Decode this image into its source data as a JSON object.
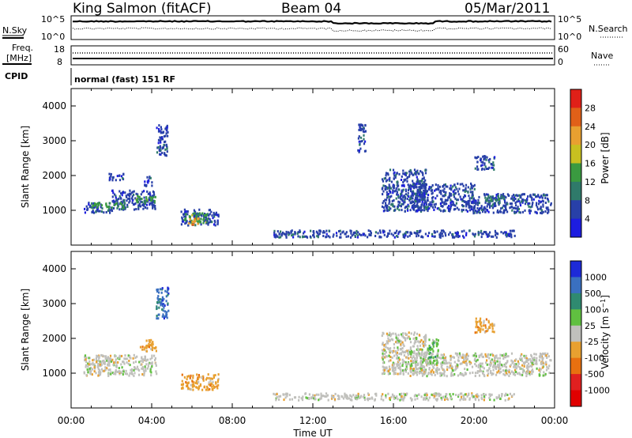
{
  "header": {
    "radar": "King Salmon (fitACF)",
    "beam": "Beam 04",
    "date": "05/Mar/2011"
  },
  "status_panels": {
    "nsky_label": "N.Sky",
    "nsearch_label": "N.Search",
    "freq_label_line1": "Freq.",
    "freq_label_line2": "[MHz]",
    "nave_label": "Nave",
    "cpid_label": "CPID",
    "cpid_text": "normal (fast) 151 RF",
    "noise_ticks_left": [
      "10^5",
      "10^0"
    ],
    "noise_ticks_right": [
      "10^5",
      "10^0"
    ],
    "freq_ticks": [
      "18",
      "8"
    ],
    "nave_ticks": [
      "60",
      "0"
    ]
  },
  "chart_data": [
    {
      "type": "heatmap",
      "panel": "power",
      "ylabel": "Slant Range [km]",
      "xlabel": "",
      "xlim_hours": [
        0,
        24
      ],
      "ylim": [
        0,
        4500
      ],
      "x_ticks": [
        "00:00",
        "04:00",
        "08:00",
        "12:00",
        "16:00",
        "20:00",
        "00:00"
      ],
      "y_ticks": [
        1000,
        2000,
        3000,
        4000
      ],
      "colorbar": {
        "label": "Power [dB]",
        "ticks": [
          "4",
          "8",
          "12",
          "16",
          "20",
          "24",
          "28"
        ],
        "colors": [
          "#1d1de0",
          "#2840a8",
          "#2f7a6a",
          "#3a9a40",
          "#c8c020",
          "#e8a030",
          "#e06018",
          "#e02018"
        ]
      },
      "regions": [
        {
          "t": [
            0.6,
            2.0
          ],
          "range": [
            950,
            1250
          ],
          "level": 1
        },
        {
          "t": [
            2.0,
            4.2
          ],
          "range": [
            1050,
            1600
          ],
          "level": 1
        },
        {
          "t": [
            1.0,
            2.6
          ],
          "range": [
            1100,
            1250
          ],
          "level": 3
        },
        {
          "t": [
            3.2,
            4.2
          ],
          "range": [
            1250,
            1450
          ],
          "level": 3
        },
        {
          "t": [
            3.6,
            4.0
          ],
          "range": [
            1700,
            2000
          ],
          "level": 1
        },
        {
          "t": [
            1.8,
            2.6
          ],
          "range": [
            1900,
            2100
          ],
          "level": 1
        },
        {
          "t": [
            5.4,
            7.3
          ],
          "range": [
            600,
            1050
          ],
          "level": 1
        },
        {
          "t": [
            5.6,
            6.8
          ],
          "range": [
            650,
            950
          ],
          "level": 3
        },
        {
          "t": [
            5.8,
            6.4
          ],
          "range": [
            600,
            800
          ],
          "level": 5
        },
        {
          "t": [
            15.4,
            17.6
          ],
          "range": [
            1000,
            2200
          ],
          "level": 1
        },
        {
          "t": [
            16.8,
            20.0
          ],
          "range": [
            1000,
            1800
          ],
          "level": 1
        },
        {
          "t": [
            19.8,
            23.8
          ],
          "range": [
            950,
            1500
          ],
          "level": 1
        },
        {
          "t": [
            20.5,
            21.5
          ],
          "range": [
            1200,
            1450
          ],
          "level": 2
        },
        {
          "t": [
            10.0,
            22.0
          ],
          "range": [
            250,
            450
          ],
          "level": 1
        },
        {
          "t": [
            14.2,
            14.6
          ],
          "range": [
            2700,
            3500
          ],
          "level": 1
        },
        {
          "t": [
            20.0,
            21.0
          ],
          "range": [
            2200,
            2600
          ],
          "level": 1
        },
        {
          "t": [
            4.2,
            4.8
          ],
          "range": [
            2600,
            3500
          ],
          "level": 1
        }
      ]
    },
    {
      "type": "heatmap",
      "panel": "velocity",
      "ylabel": "Slant Range [km]",
      "xlabel": "Time UT",
      "xlim_hours": [
        0,
        24
      ],
      "ylim": [
        0,
        4500
      ],
      "x_ticks": [
        "00:00",
        "04:00",
        "08:00",
        "12:00",
        "16:00",
        "20:00",
        "00:00"
      ],
      "y_ticks": [
        1000,
        2000,
        3000,
        4000
      ],
      "colorbar": {
        "label": "Velocity [m s^-1]",
        "ticks": [
          "1000",
          "500",
          "100",
          "25",
          "-25",
          "-100",
          "-500",
          "-1000"
        ],
        "colors": [
          "#1d2ad8",
          "#3a70c0",
          "#2f8a70",
          "#60c040",
          "#c0c0bc",
          "#e8a030",
          "#e87010",
          "#e02020",
          "#e00000"
        ]
      },
      "regions": [
        {
          "t": [
            0.6,
            4.2
          ],
          "range": [
            950,
            1550
          ],
          "level": 4
        },
        {
          "t": [
            3.4,
            4.2
          ],
          "range": [
            1650,
            2000
          ],
          "level": 5
        },
        {
          "t": [
            5.4,
            7.3
          ],
          "range": [
            550,
            1000
          ],
          "level": 5
        },
        {
          "t": [
            15.4,
            17.6
          ],
          "range": [
            1000,
            2200
          ],
          "level": 4
        },
        {
          "t": [
            16.8,
            23.8
          ],
          "range": [
            950,
            1600
          ],
          "level": 4
        },
        {
          "t": [
            17.6,
            18.2
          ],
          "range": [
            1300,
            2000
          ],
          "level": 3
        },
        {
          "t": [
            10.0,
            22.0
          ],
          "range": [
            250,
            450
          ],
          "level": 4
        },
        {
          "t": [
            20.0,
            21.0
          ],
          "range": [
            2200,
            2600
          ],
          "level": 5
        },
        {
          "t": [
            4.2,
            4.8
          ],
          "range": [
            2600,
            3500
          ],
          "level": 1
        }
      ]
    }
  ]
}
